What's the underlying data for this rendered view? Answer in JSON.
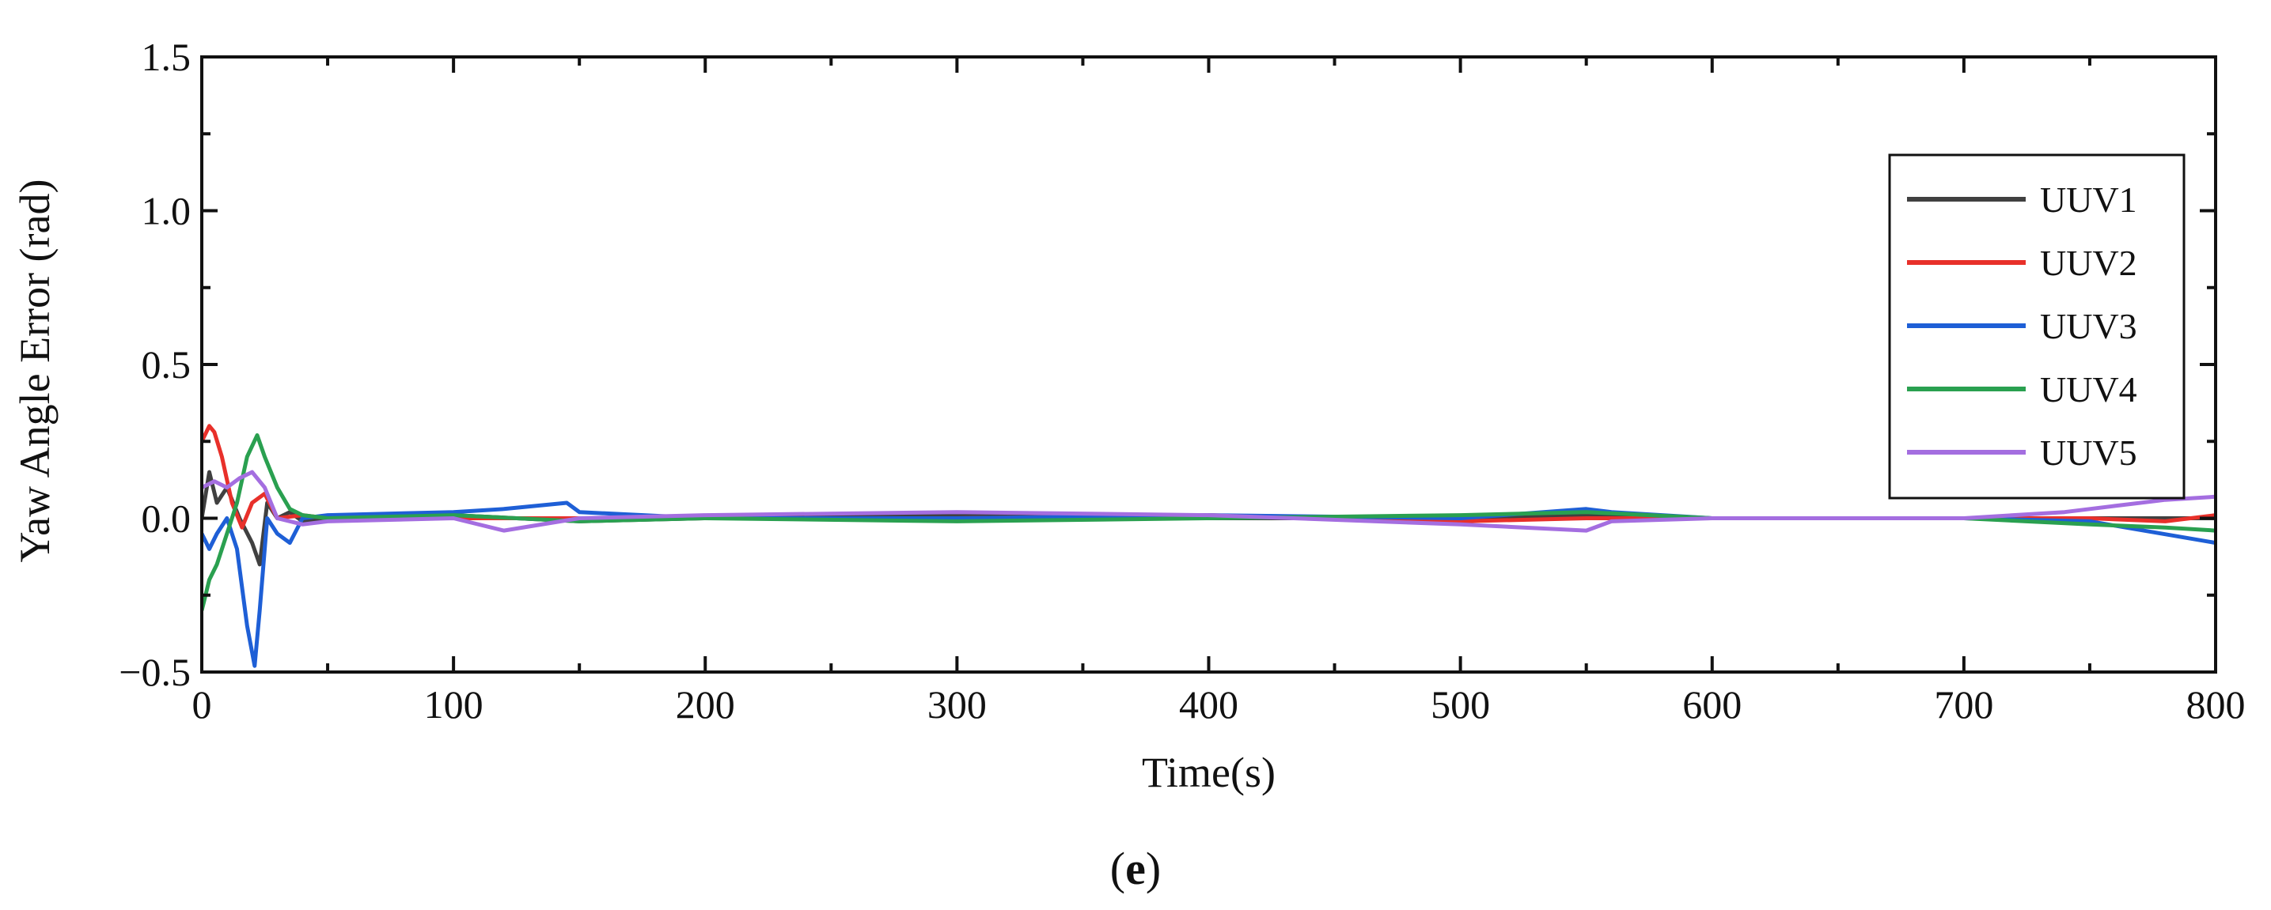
{
  "chart_data": {
    "type": "line",
    "xlabel": "Time(s)",
    "ylabel": "Yaw Angle Error (rad)",
    "xlim": [
      0,
      800
    ],
    "ylim": [
      -0.5,
      1.5
    ],
    "xticks": [
      0,
      100,
      200,
      300,
      400,
      500,
      600,
      700,
      800
    ],
    "xtick_labels": [
      "0",
      "100",
      "200",
      "300",
      "400",
      "500",
      "600",
      "700",
      "800"
    ],
    "yticks": [
      -0.5,
      0.0,
      0.5,
      1.0,
      1.5
    ],
    "ytick_labels": [
      "−0.5",
      "0.0",
      "0.5",
      "1.0",
      "1.5"
    ],
    "grid": false,
    "legend_position": "top-right",
    "caption": {
      "open": "(",
      "letter": "e",
      "close": ")"
    },
    "series": [
      {
        "name": "UUV1",
        "color": "#404040",
        "x": [
          0,
          3,
          6,
          10,
          15,
          20,
          23,
          26,
          30,
          35,
          40,
          50,
          100,
          150,
          200,
          300,
          400,
          500,
          550,
          600,
          700,
          750,
          800
        ],
        "y": [
          0.0,
          0.15,
          0.05,
          0.1,
          0.0,
          -0.08,
          -0.15,
          0.05,
          0.0,
          0.02,
          -0.01,
          0.0,
          0.01,
          -0.01,
          0.0,
          0.01,
          0.0,
          0.0,
          0.01,
          0.0,
          0.0,
          0.0,
          0.0
        ]
      },
      {
        "name": "UUV2",
        "color": "#e8302a",
        "x": [
          0,
          3,
          5,
          8,
          12,
          16,
          20,
          25,
          30,
          40,
          50,
          100,
          150,
          200,
          300,
          400,
          500,
          550,
          600,
          700,
          750,
          780,
          800
        ],
        "y": [
          0.25,
          0.3,
          0.28,
          0.2,
          0.05,
          -0.03,
          0.05,
          0.08,
          0.0,
          0.01,
          0.0,
          0.0,
          0.0,
          0.0,
          0.0,
          0.01,
          -0.01,
          0.0,
          0.0,
          0.0,
          0.0,
          -0.01,
          0.01
        ]
      },
      {
        "name": "UUV3",
        "color": "#1e5fd6",
        "x": [
          0,
          3,
          6,
          10,
          14,
          18,
          21,
          23,
          26,
          30,
          35,
          40,
          50,
          100,
          120,
          145,
          150,
          200,
          300,
          400,
          500,
          550,
          560,
          600,
          700,
          750,
          800
        ],
        "y": [
          -0.05,
          -0.1,
          -0.05,
          0.0,
          -0.1,
          -0.35,
          -0.48,
          -0.3,
          0.0,
          -0.05,
          -0.08,
          0.0,
          0.01,
          0.02,
          0.03,
          0.05,
          0.02,
          0.0,
          0.0,
          0.01,
          0.0,
          0.03,
          0.02,
          0.0,
          0.0,
          -0.01,
          -0.08
        ]
      },
      {
        "name": "UUV4",
        "color": "#2aa050",
        "x": [
          0,
          3,
          6,
          10,
          14,
          18,
          22,
          25,
          30,
          35,
          40,
          50,
          100,
          150,
          200,
          300,
          400,
          500,
          550,
          600,
          700,
          750,
          780,
          800
        ],
        "y": [
          -0.3,
          -0.2,
          -0.15,
          -0.05,
          0.05,
          0.2,
          0.27,
          0.2,
          0.1,
          0.03,
          0.01,
          0.0,
          0.01,
          -0.01,
          0.0,
          -0.01,
          0.0,
          0.01,
          0.02,
          0.0,
          0.0,
          -0.02,
          -0.03,
          -0.04
        ]
      },
      {
        "name": "UUV5",
        "color": "#a46ee0",
        "x": [
          0,
          5,
          10,
          15,
          20,
          25,
          30,
          40,
          50,
          100,
          120,
          150,
          200,
          300,
          400,
          500,
          550,
          560,
          600,
          700,
          740,
          760,
          780,
          800
        ],
        "y": [
          0.1,
          0.12,
          0.1,
          0.13,
          0.15,
          0.1,
          0.0,
          -0.02,
          -0.01,
          0.0,
          -0.04,
          0.0,
          0.01,
          0.02,
          0.01,
          -0.02,
          -0.04,
          -0.01,
          0.0,
          0.0,
          0.02,
          0.04,
          0.06,
          0.07
        ]
      }
    ]
  }
}
